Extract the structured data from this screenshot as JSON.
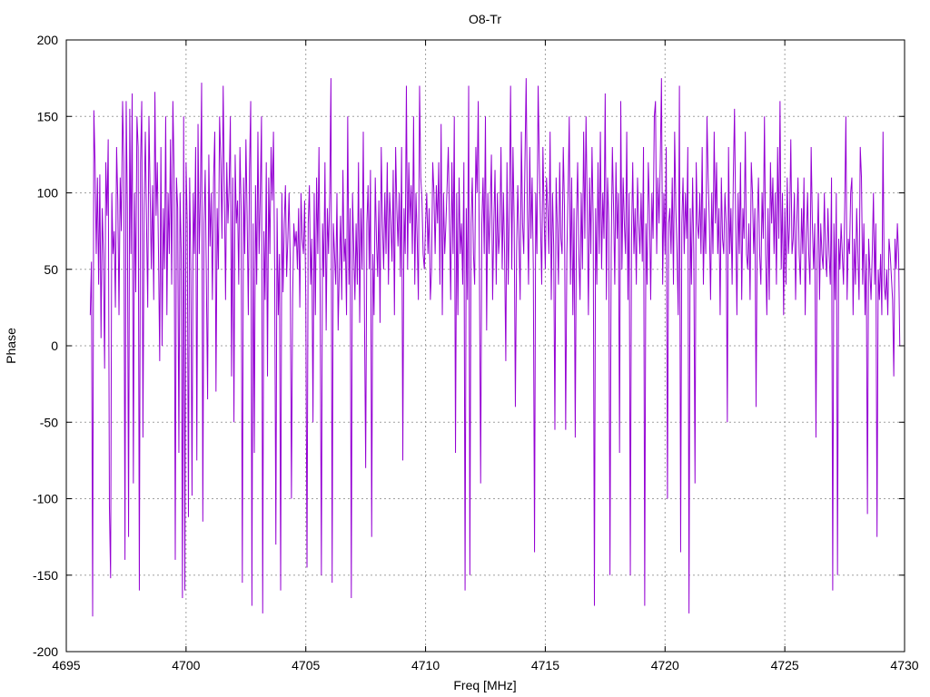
{
  "chart_data": {
    "type": "line",
    "title": "O8-Tr",
    "xlabel": "Freq [MHz]",
    "ylabel": "Phase",
    "xlim": [
      4695,
      4730
    ],
    "ylim": [
      -200,
      200
    ],
    "xticks": [
      4695,
      4700,
      4705,
      4710,
      4715,
      4720,
      4725,
      4730
    ],
    "yticks": [
      -200,
      -150,
      -100,
      -50,
      0,
      50,
      100,
      150,
      200
    ],
    "grid": true,
    "legend": "none",
    "series": [
      {
        "color": "#9400d3",
        "x_start": 4696.0,
        "x_step": 0.05,
        "values": [
          20,
          55,
          -177,
          154,
          120,
          60,
          110,
          40,
          112,
          5,
          90,
          60,
          -15,
          120,
          85,
          135,
          -105,
          -152,
          100,
          60,
          75,
          25,
          130,
          95,
          20,
          110,
          75,
          160,
          120,
          -140,
          160,
          90,
          -125,
          155,
          60,
          165,
          -90,
          100,
          35,
          150,
          130,
          -160,
          120,
          160,
          -60,
          90,
          140,
          80,
          25,
          150,
          100,
          50,
          105,
          30,
          166,
          85,
          120,
          60,
          -10,
          130,
          0,
          90,
          50,
          150,
          20,
          100,
          60,
          135,
          40,
          160,
          115,
          -140,
          110,
          90,
          -70,
          100,
          60,
          -165,
          150,
          -160,
          120,
          80,
          -112,
          110,
          50,
          -98,
          100,
          60,
          130,
          -75,
          145,
          60,
          100,
          172,
          -115,
          80,
          115,
          40,
          -35,
          125,
          65,
          100,
          30,
          110,
          140,
          -30,
          90,
          50,
          150,
          120,
          70,
          170,
          100,
          30,
          120,
          80,
          105,
          150,
          -20,
          110,
          -50,
          125,
          80,
          95,
          40,
          130,
          90,
          -155,
          110,
          60,
          135,
          85,
          20,
          115,
          160,
          -170,
          80,
          -70,
          105,
          40,
          140,
          60,
          100,
          150,
          -175,
          75,
          30,
          120,
          -20,
          110,
          60,
          130,
          95,
          140,
          50,
          -130,
          90,
          20,
          60,
          -160,
          100,
          35,
          80,
          105,
          45,
          70,
          100,
          55,
          -100,
          30,
          80,
          65,
          75,
          50,
          90,
          25,
          100,
          70,
          60,
          95,
          30,
          -145,
          80,
          105,
          40,
          70,
          -50,
          100,
          20,
          110,
          60,
          130,
          30,
          -150,
          80,
          45,
          120,
          10,
          90,
          60,
          100,
          175,
          -155,
          80,
          60,
          40,
          100,
          10,
          50,
          85,
          30,
          115,
          55,
          70,
          20,
          150,
          40,
          90,
          -165,
          100,
          65,
          30,
          80,
          40,
          120,
          15,
          90,
          50,
          140,
          20,
          -80,
          80,
          105,
          50,
          115,
          -125,
          60,
          20,
          110,
          70,
          45,
          95,
          15,
          130,
          80,
          50,
          100,
          60,
          120,
          40,
          100,
          80,
          55,
          115,
          20,
          130,
          90,
          65,
          100,
          45,
          130,
          -75,
          90,
          60,
          170,
          50,
          120,
          80,
          105,
          60,
          150,
          40,
          100,
          70,
          30,
          170,
          110,
          95,
          60,
          50,
          80,
          100,
          60,
          90,
          30,
          50,
          120,
          100,
          60,
          105,
          80,
          120,
          40,
          145,
          20,
          100,
          60,
          80,
          105,
          130,
          80,
          30,
          120,
          60,
          150,
          -70,
          100,
          20,
          110,
          60,
          80,
          40,
          120,
          -160,
          90,
          30,
          170,
          -150,
          80,
          110,
          60,
          40,
          130,
          100,
          160,
          50,
          -90,
          80,
          110,
          60,
          150,
          10,
          100,
          60,
          90,
          125,
          30,
          80,
          115,
          40,
          100,
          60,
          75,
          130,
          50,
          100,
          60,
          -10,
          120,
          40,
          90,
          170,
          50,
          130,
          80,
          -40,
          60,
          105,
          70,
          30,
          140,
          80,
          60,
          120,
          175,
          90,
          40,
          130,
          70,
          110,
          50,
          -135,
          100,
          60,
          170,
          120,
          80,
          40,
          130,
          85,
          50,
          110,
          90,
          60,
          140,
          30,
          100,
          65,
          -55,
          110,
          80,
          40,
          120,
          70,
          60,
          130,
          90,
          -55,
          60,
          100,
          150,
          40,
          110,
          20,
          90,
          -60,
          80,
          120,
          60,
          30,
          100,
          50,
          140,
          70,
          150,
          90,
          20,
          110,
          60,
          130,
          80,
          -170,
          90,
          40,
          120,
          60,
          140,
          50,
          100,
          70,
          165,
          30,
          110,
          80,
          -150,
          60,
          130,
          90,
          40,
          120,
          70,
          100,
          -70,
          160,
          50,
          110,
          80,
          60,
          140,
          30,
          100,
          -150,
          70,
          120,
          60,
          90,
          40,
          110,
          80,
          60,
          100,
          55,
          130,
          -170,
          80,
          40,
          120,
          90,
          30,
          100,
          70,
          150,
          160,
          60,
          110,
          80,
          120,
          175,
          40,
          100,
          60,
          130,
          -100,
          80,
          90,
          60,
          110,
          40,
          140,
          90,
          60,
          20,
          170,
          -135,
          80,
          110,
          60,
          100,
          70,
          130,
          -175,
          90,
          40,
          110,
          60,
          -90,
          120,
          80,
          70,
          100,
          60,
          130,
          40,
          90,
          60,
          150,
          110,
          80,
          30,
          100,
          60,
          140,
          80,
          120,
          60,
          90,
          20,
          110,
          70,
          60,
          100,
          80,
          -50,
          130,
          60,
          90,
          40,
          110,
          155,
          80,
          20,
          100,
          60,
          120,
          30,
          90,
          70,
          140,
          60,
          50,
          80,
          30,
          120,
          100,
          60,
          90,
          -40,
          80,
          110,
          60,
          40,
          100,
          70,
          150,
          60,
          20,
          90,
          30,
          120,
          80,
          110,
          60,
          100,
          40,
          130,
          70,
          160,
          50,
          100,
          20,
          90,
          40,
          110,
          60,
          80,
          135,
          60,
          70,
          100,
          30,
          80,
          110,
          60,
          40,
          90,
          60,
          110,
          20,
          70,
          100,
          60,
          40,
          130,
          80,
          50,
          80,
          -60,
          60,
          100,
          30,
          80,
          60,
          50,
          100,
          60,
          45,
          90,
          60,
          40,
          110,
          -160,
          80,
          30,
          100,
          -150,
          70,
          50,
          80,
          60,
          40,
          90,
          150,
          30,
          70,
          60,
          100,
          110,
          20,
          70,
          40,
          90,
          60,
          30,
          130,
          110,
          40,
          80,
          20,
          60,
          -110,
          70,
          50,
          30,
          60,
          100,
          40,
          80,
          -125,
          50,
          30,
          60,
          20,
          140,
          40,
          30,
          50,
          20,
          70,
          60,
          45,
          30,
          -20,
          70,
          50,
          80,
          60,
          0
        ]
      }
    ]
  }
}
